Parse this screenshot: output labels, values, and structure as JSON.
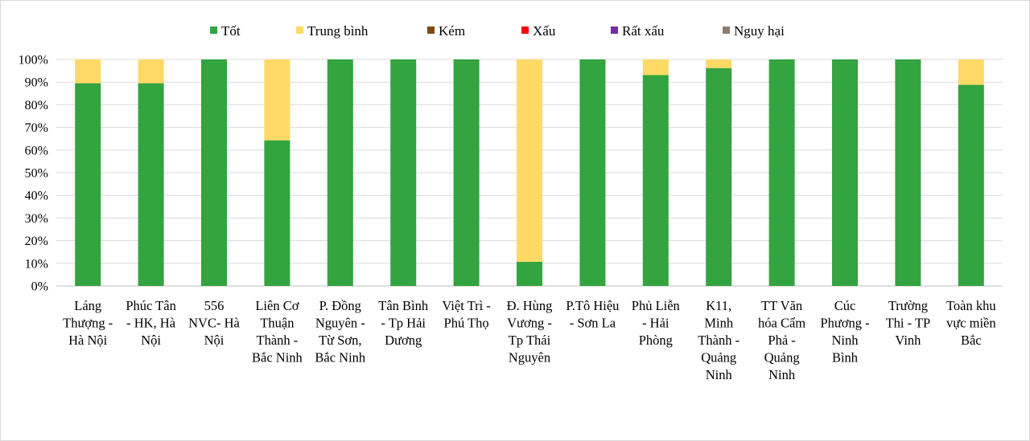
{
  "chart_data": {
    "type": "bar",
    "stacked": "percent",
    "ylim": [
      0,
      100
    ],
    "yticks": [
      "0%",
      "10%",
      "20%",
      "30%",
      "40%",
      "50%",
      "60%",
      "70%",
      "80%",
      "90%",
      "100%"
    ],
    "grid": true,
    "legend_position": "top",
    "categories": [
      [
        "Láng",
        "Thượng -",
        "Hà Nội"
      ],
      [
        "Phúc Tân",
        "- HK, Hà",
        "Nội"
      ],
      [
        "556",
        "NVC- Hà",
        "Nội"
      ],
      [
        "Liên Cơ",
        "Thuận",
        "Thành -",
        "Bắc Ninh"
      ],
      [
        "P. Đồng",
        "Nguyên -",
        "Từ Sơn,",
        "Bắc Ninh"
      ],
      [
        "Tân Bình",
        "- Tp Hải",
        "Dương"
      ],
      [
        "Việt Trì  -",
        "Phú Thọ"
      ],
      [
        "Đ. Hùng",
        "Vương -",
        "Tp Thái",
        "Nguyên"
      ],
      [
        "P.Tô Hiệu",
        "- Sơn La"
      ],
      [
        "Phủ Liễn",
        "- Hải",
        "Phòng"
      ],
      [
        "K11,",
        "Minh",
        "Thành -",
        "Quảng",
        "Ninh"
      ],
      [
        "TT Văn",
        "hóa Cẩm",
        "Phả -",
        "Quảng",
        "Ninh"
      ],
      [
        "Cúc",
        "Phương -",
        "Ninh",
        "Bình"
      ],
      [
        "Trường",
        "Thi - TP",
        "Vinh"
      ],
      [
        "Toàn khu",
        "vực miền",
        "Bắc"
      ]
    ],
    "series": [
      {
        "name": "Tốt",
        "color": "#33a43f",
        "values": [
          89.5,
          89.5,
          100,
          64.3,
          100,
          100,
          100,
          10.7,
          100,
          93.1,
          96.2,
          100,
          100,
          100,
          88.8
        ]
      },
      {
        "name": "Trung bình",
        "color": "#ffd966",
        "values": [
          10.5,
          10.5,
          0,
          35.7,
          0,
          0,
          0,
          89.3,
          0,
          6.9,
          3.8,
          0,
          0,
          0,
          11.2
        ]
      },
      {
        "name": "Kém",
        "color": "#7f4a10",
        "values": [
          0,
          0,
          0,
          0,
          0,
          0,
          0,
          0,
          0,
          0,
          0,
          0,
          0,
          0,
          0
        ]
      },
      {
        "name": "Xấu",
        "color": "#ff0000",
        "values": [
          0,
          0,
          0,
          0,
          0,
          0,
          0,
          0,
          0,
          0,
          0,
          0,
          0,
          0,
          0
        ]
      },
      {
        "name": "Rất xấu",
        "color": "#7030a0",
        "values": [
          0,
          0,
          0,
          0,
          0,
          0,
          0,
          0,
          0,
          0,
          0,
          0,
          0,
          0,
          0
        ]
      },
      {
        "name": "Nguy hại",
        "color": "#8c7b6b",
        "values": [
          0,
          0,
          0,
          0,
          0,
          0,
          0,
          0,
          0,
          0,
          0,
          0,
          0,
          0,
          0
        ]
      }
    ]
  }
}
